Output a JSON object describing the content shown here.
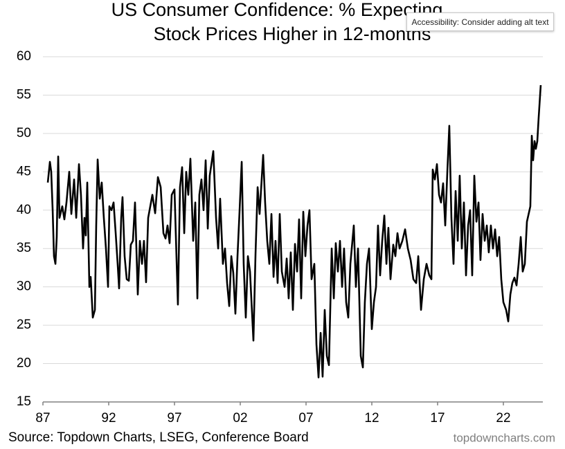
{
  "chart_data": {
    "type": "line",
    "title": [
      "US Consumer Confidence: % Expecting",
      "Stock Prices Higher in 12-months"
    ],
    "source": "Source: Topdown Charts, LSEG, Conference Board",
    "watermark": "topdowncharts.com",
    "tooltip": "Accessibility: Consider adding alt text",
    "color": "#000000",
    "grid": true,
    "x": [
      1987.37,
      1987.53,
      1987.63,
      1987.74,
      1987.84,
      1987.95,
      1988.05,
      1988.16,
      1988.26,
      1988.47,
      1988.63,
      1988.79,
      1989.0,
      1989.16,
      1989.37,
      1989.53,
      1989.74,
      1989.89,
      1990.05,
      1990.16,
      1990.26,
      1990.37,
      1990.53,
      1990.63,
      1990.79,
      1990.95,
      1991.05,
      1991.16,
      1991.32,
      1991.47,
      1991.63,
      1991.79,
      1991.95,
      1992.05,
      1992.21,
      1992.37,
      1992.53,
      1992.68,
      1992.79,
      1992.95,
      1993.05,
      1993.21,
      1993.37,
      1993.53,
      1993.68,
      1993.84,
      1994.0,
      1994.21,
      1994.37,
      1994.53,
      1994.68,
      1994.84,
      1995.0,
      1995.16,
      1995.32,
      1995.53,
      1995.74,
      1995.95,
      1996.16,
      1996.32,
      1996.47,
      1996.63,
      1996.79,
      1997.0,
      1997.26,
      1997.42,
      1997.58,
      1997.74,
      1997.89,
      1998.05,
      1998.21,
      1998.42,
      1998.58,
      1998.74,
      1998.89,
      1999.05,
      1999.21,
      1999.37,
      1999.53,
      1999.68,
      1999.95,
      2000.16,
      2000.32,
      2000.47,
      2000.68,
      2000.84,
      2001.0,
      2001.16,
      2001.32,
      2001.47,
      2001.63,
      2001.79,
      2001.95,
      2002.11,
      2002.26,
      2002.42,
      2002.58,
      2002.74,
      2003.0,
      2003.16,
      2003.32,
      2003.47,
      2003.74,
      2003.89,
      2004.05,
      2004.21,
      2004.37,
      2004.53,
      2004.68,
      2004.84,
      2005.0,
      2005.16,
      2005.37,
      2005.53,
      2005.68,
      2005.84,
      2006.0,
      2006.16,
      2006.32,
      2006.47,
      2006.63,
      2006.79,
      2006.95,
      2007.11,
      2007.26,
      2007.42,
      2007.63,
      2007.79,
      2007.95,
      2008.11,
      2008.26,
      2008.42,
      2008.58,
      2008.74,
      2008.95,
      2009.11,
      2009.26,
      2009.42,
      2009.58,
      2009.74,
      2009.89,
      2010.05,
      2010.21,
      2010.37,
      2010.63,
      2010.79,
      2010.95,
      2011.16,
      2011.32,
      2011.47,
      2011.63,
      2011.79,
      2012.0,
      2012.16,
      2012.32,
      2012.47,
      2012.63,
      2012.79,
      2012.95,
      2013.11,
      2013.26,
      2013.42,
      2013.63,
      2013.79,
      2013.95,
      2014.11,
      2014.32,
      2014.53,
      2014.74,
      2014.95,
      2015.16,
      2015.37,
      2015.53,
      2015.74,
      2015.95,
      2016.16,
      2016.37,
      2016.53,
      2016.63,
      2016.79,
      2016.95,
      2017.11,
      2017.26,
      2017.42,
      2017.58,
      2017.74,
      2017.89,
      2018.05,
      2018.21,
      2018.37,
      2018.53,
      2018.68,
      2018.84,
      2019.0,
      2019.16,
      2019.32,
      2019.47,
      2019.63,
      2019.79,
      2019.95,
      2020.11,
      2020.26,
      2020.42,
      2020.58,
      2020.74,
      2020.89,
      2021.05,
      2021.21,
      2021.37,
      2021.53,
      2021.68,
      2021.84,
      2022.0,
      2022.21,
      2022.37,
      2022.53,
      2022.68,
      2022.84,
      2023.0,
      2023.16,
      2023.32,
      2023.47,
      2023.63,
      2023.79,
      2024.05,
      2024.16,
      2024.26,
      2024.37,
      2024.47,
      2024.58,
      2024.68,
      2024.84
    ],
    "values": [
      43.6,
      46.3,
      45,
      40,
      34,
      33,
      36.5,
      47,
      39,
      40.5,
      38.8,
      41,
      45,
      39.5,
      44,
      39,
      46,
      42,
      35,
      39,
      36.7,
      43.6,
      30,
      31.3,
      26,
      27,
      38,
      46.6,
      41.5,
      43.6,
      39,
      35,
      30,
      40.5,
      40,
      41,
      37,
      33,
      29.8,
      39,
      41.7,
      34,
      31,
      30.8,
      35.5,
      36,
      41,
      29,
      36,
      33,
      36,
      30.6,
      39,
      40.5,
      42,
      39.6,
      44.3,
      43,
      37,
      36.3,
      38,
      35.7,
      42,
      42.7,
      27.7,
      43,
      45.6,
      37,
      45,
      42,
      46.7,
      36,
      41,
      28.5,
      42,
      44,
      40,
      46.5,
      37.6,
      44.5,
      47.7,
      39,
      35,
      41.5,
      33,
      35,
      30.5,
      27.5,
      34,
      31.8,
      26.5,
      34,
      40,
      46.3,
      33,
      26,
      34,
      32,
      23,
      34.3,
      43,
      39.5,
      47.2,
      41,
      36,
      33,
      39.5,
      31.3,
      36,
      30.5,
      39.5,
      32,
      30,
      33.7,
      28.5,
      34.5,
      27,
      35.6,
      32,
      38.8,
      28.5,
      39.8,
      34,
      38,
      40,
      31,
      33,
      22.5,
      18.2,
      24,
      18.3,
      27,
      21,
      19.8,
      35,
      28.5,
      35.7,
      32,
      36,
      30,
      35,
      28,
      26,
      33,
      38,
      30,
      35,
      21,
      19.5,
      28,
      33,
      35,
      24.5,
      28,
      30,
      38,
      31.5,
      36,
      39.3,
      33,
      37.7,
      31,
      35.5,
      34,
      37,
      35,
      36,
      37.5,
      35,
      33.5,
      31,
      30.5,
      34,
      27,
      31,
      33,
      31.5,
      31,
      45.3,
      44,
      46,
      42,
      41,
      43.5,
      38,
      45,
      51,
      39,
      33,
      42.5,
      36,
      44.5,
      35,
      41,
      31.5,
      38,
      40,
      31.5,
      44.5,
      38.5,
      41,
      33.5,
      39.5,
      36,
      38,
      34.5,
      38,
      35,
      37.5,
      34,
      36.5,
      31,
      28,
      27,
      25.5,
      29,
      30.5,
      31.2,
      30.2,
      33,
      36.5,
      32,
      33,
      38.5,
      40.5,
      49.7,
      46.5,
      49,
      48,
      49,
      52,
      56.3
    ],
    "xlim": [
      1987,
      2025
    ],
    "xticks": [
      {
        "value": 1987,
        "label": "87"
      },
      {
        "value": 1992,
        "label": "92"
      },
      {
        "value": 1997,
        "label": "97"
      },
      {
        "value": 2002,
        "label": "02"
      },
      {
        "value": 2007,
        "label": "07"
      },
      {
        "value": 2012,
        "label": "12"
      },
      {
        "value": 2017,
        "label": "17"
      },
      {
        "value": 2022,
        "label": "22"
      }
    ],
    "ylim": [
      15,
      60
    ],
    "yticks": [
      15,
      20,
      25,
      30,
      35,
      40,
      45,
      50,
      55,
      60
    ]
  }
}
